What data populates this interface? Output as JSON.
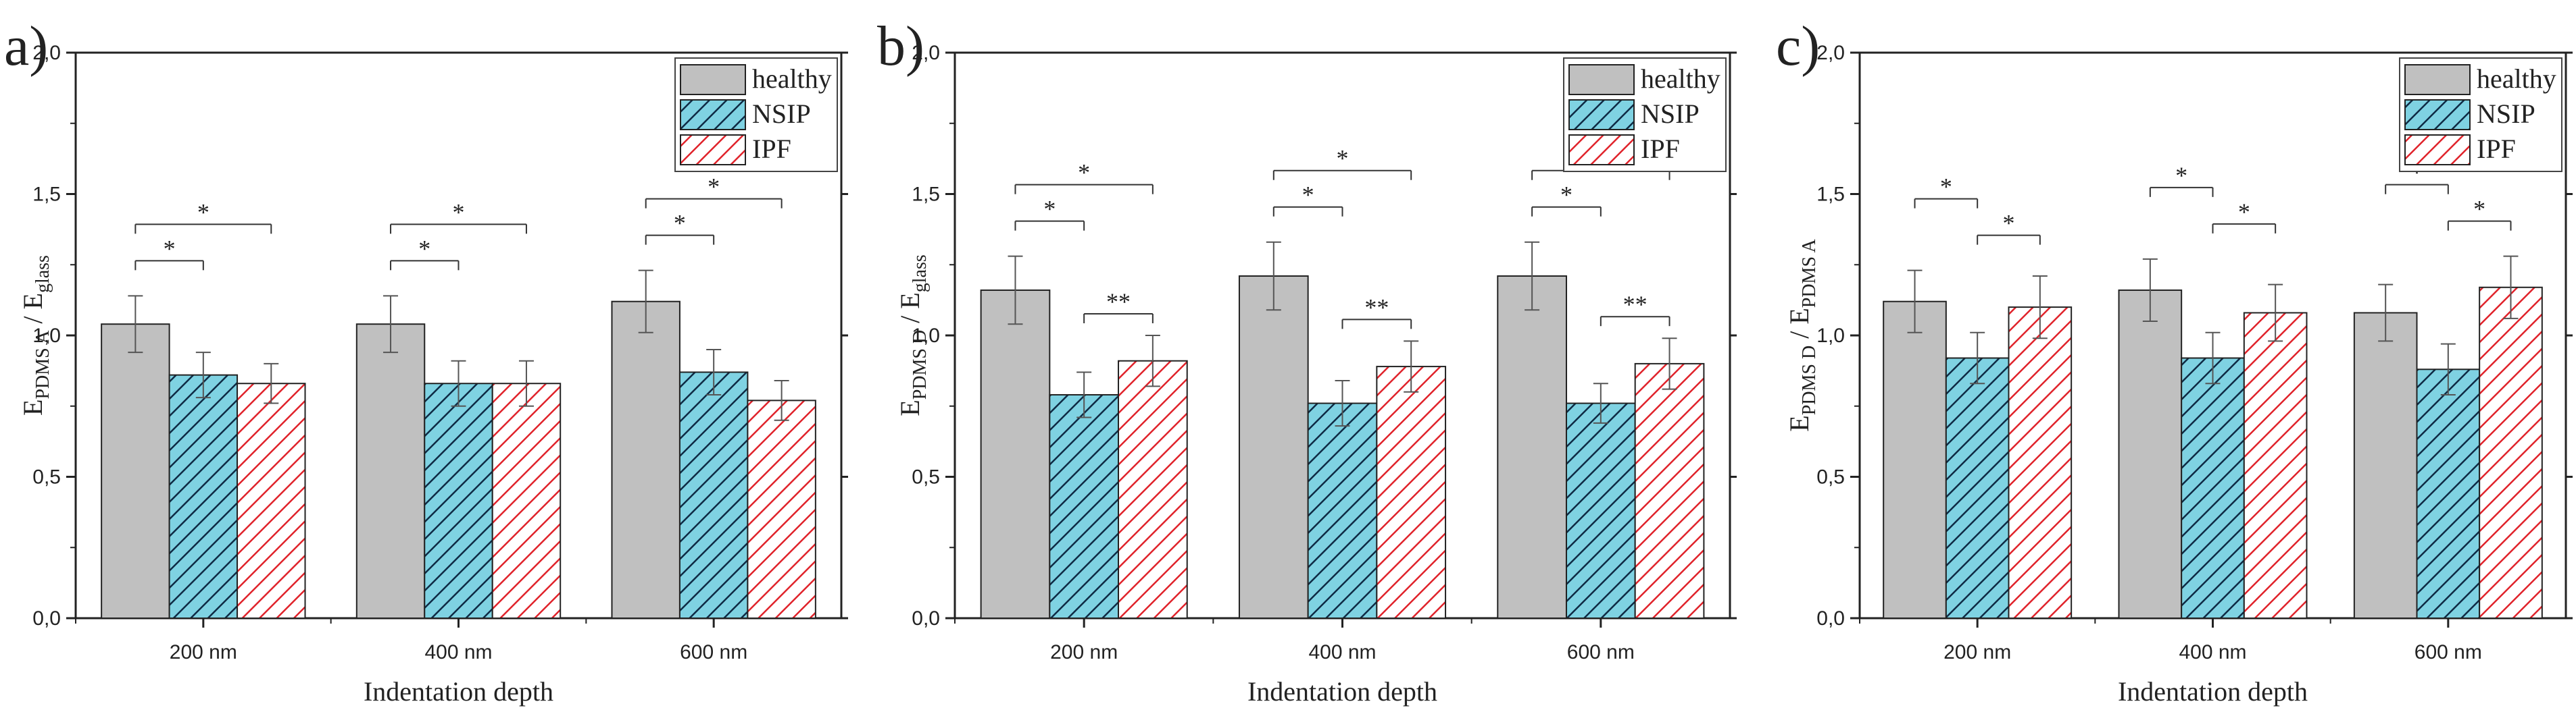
{
  "chart_data": [
    {
      "type": "bar",
      "panel_label": "a)",
      "categories": [
        "200 nm",
        "400 nm",
        "600 nm"
      ],
      "xlabel": "Indentation depth",
      "ylabel": {
        "main": "E",
        "sub_main": "PDMS A",
        "sep": " / E",
        "sub_sep": "glass"
      },
      "ylim": [
        0,
        2.0
      ],
      "yticks": [
        "0,0",
        "0,5",
        "1,0",
        "1,5",
        "2,0"
      ],
      "series": [
        {
          "name": "healthy",
          "values": [
            1.04,
            1.04,
            1.12
          ],
          "errors": [
            0.1,
            0.1,
            0.11
          ]
        },
        {
          "name": "NSIP",
          "values": [
            0.86,
            0.83,
            0.87
          ],
          "errors": [
            0.08,
            0.08,
            0.08
          ]
        },
        {
          "name": "IPF",
          "values": [
            0.83,
            0.83,
            0.77
          ],
          "errors": [
            0.07,
            0.08,
            0.07
          ]
        }
      ],
      "significance": [
        {
          "category": 0,
          "from": 0,
          "to": 1,
          "level": 0.0,
          "label": "*"
        },
        {
          "category": 0,
          "from": 0,
          "to": 2,
          "level": 1.0,
          "label": "*"
        },
        {
          "category": 1,
          "from": 0,
          "to": 1,
          "level": 0.0,
          "label": "*"
        },
        {
          "category": 1,
          "from": 0,
          "to": 2,
          "level": 1.0,
          "label": "*"
        },
        {
          "category": 2,
          "from": 0,
          "to": 1,
          "level": 0.0,
          "label": "*"
        },
        {
          "category": 2,
          "from": 0,
          "to": 2,
          "level": 1.0,
          "label": "*"
        }
      ],
      "legend": "top-right"
    },
    {
      "type": "bar",
      "panel_label": "b)",
      "categories": [
        "200 nm",
        "400 nm",
        "600 nm"
      ],
      "xlabel": "Indentation depth",
      "ylabel": {
        "main": "E",
        "sub_main": "PDMS D",
        "sep": " / E",
        "sub_sep": "glass"
      },
      "ylim": [
        0,
        2.0
      ],
      "yticks": [
        "0,0",
        "0,5",
        "1,0",
        "1,5",
        "2,0"
      ],
      "series": [
        {
          "name": "healthy",
          "values": [
            1.16,
            1.21,
            1.21
          ],
          "errors": [
            0.12,
            0.12,
            0.12
          ]
        },
        {
          "name": "NSIP",
          "values": [
            0.79,
            0.76,
            0.76
          ],
          "errors": [
            0.08,
            0.08,
            0.07
          ]
        },
        {
          "name": "IPF",
          "values": [
            0.91,
            0.89,
            0.9
          ],
          "errors": [
            0.09,
            0.09,
            0.09
          ]
        }
      ],
      "significance": [
        {
          "category": 0,
          "from": 0,
          "to": 1,
          "level": 0.0,
          "label": "*"
        },
        {
          "category": 0,
          "from": 0,
          "to": 2,
          "level": 1.0,
          "label": "*"
        },
        {
          "category": 0,
          "from": 1,
          "to": 2,
          "level": -2.0,
          "label": "**"
        },
        {
          "category": 1,
          "from": 0,
          "to": 1,
          "level": 0.0,
          "label": "*"
        },
        {
          "category": 1,
          "from": 0,
          "to": 2,
          "level": 1.0,
          "label": "*"
        },
        {
          "category": 1,
          "from": 1,
          "to": 2,
          "level": -2.0,
          "label": "**"
        },
        {
          "category": 2,
          "from": 0,
          "to": 1,
          "level": 0.0,
          "label": "*"
        },
        {
          "category": 2,
          "from": 0,
          "to": 2,
          "level": 1.0,
          "label": "*"
        },
        {
          "category": 2,
          "from": 1,
          "to": 2,
          "level": -2.0,
          "label": "**"
        }
      ],
      "legend": "top-right"
    },
    {
      "type": "bar",
      "panel_label": "c)",
      "categories": [
        "200 nm",
        "400 nm",
        "600 nm"
      ],
      "xlabel": "Indentation depth",
      "ylabel": {
        "main": "E",
        "sub_main": "PDMS D",
        "sep": " / E",
        "sub_sep": "PDMS A"
      },
      "ylim": [
        0,
        2.0
      ],
      "yticks": [
        "0,0",
        "0,5",
        "1,0",
        "1,5",
        "2,0"
      ],
      "series": [
        {
          "name": "healthy",
          "values": [
            1.12,
            1.16,
            1.08
          ],
          "errors": [
            0.11,
            0.11,
            0.1
          ]
        },
        {
          "name": "NSIP",
          "values": [
            0.92,
            0.92,
            0.88
          ],
          "errors": [
            0.09,
            0.09,
            0.09
          ]
        },
        {
          "name": "IPF",
          "values": [
            1.1,
            1.08,
            1.17
          ],
          "errors": [
            0.11,
            0.1,
            0.11
          ]
        }
      ],
      "significance": [
        {
          "category": 0,
          "from": 0,
          "to": 1,
          "level": 1.0,
          "label": "*"
        },
        {
          "category": 0,
          "from": 1,
          "to": 2,
          "level": 0.0,
          "label": "*"
        },
        {
          "category": 1,
          "from": 0,
          "to": 1,
          "level": 1.0,
          "label": "*"
        },
        {
          "category": 1,
          "from": 1,
          "to": 2,
          "level": 0.0,
          "label": "*"
        },
        {
          "category": 2,
          "from": 0,
          "to": 1,
          "level": 1.0,
          "label": "*"
        },
        {
          "category": 2,
          "from": 1,
          "to": 2,
          "level": 0.0,
          "label": "*"
        }
      ],
      "legend": "top-right"
    }
  ],
  "colors": {
    "healthy_fill": "#c0c0c0",
    "nsip_fill": "#7fd2e2",
    "nsip_hatch": "#0e2a44",
    "ipf_fill": "#ffffff",
    "ipf_hatch": "#e0222a",
    "axis": "#222222"
  }
}
